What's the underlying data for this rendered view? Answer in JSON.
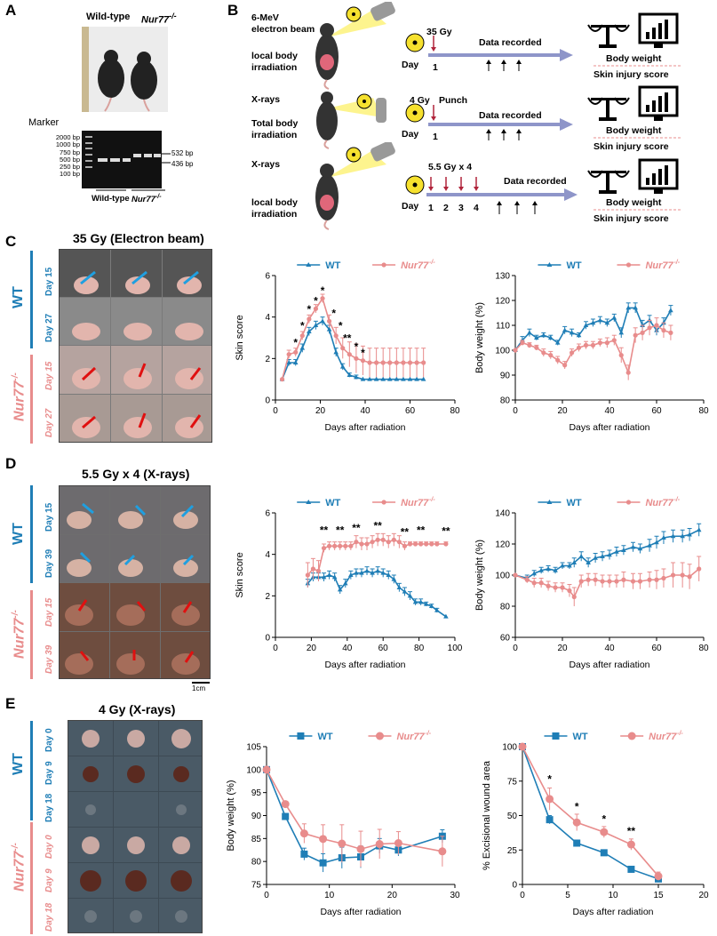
{
  "panels": {
    "A": {
      "letter": "A",
      "wt_label": "Wild-type",
      "ko_label": "Nur77",
      "ko_sup": "-/-",
      "marker_label": "Marker",
      "ladder": [
        "2000 bp",
        "1000 bp",
        "750 bp",
        "500 bp",
        "250 bp",
        "100 bp"
      ],
      "bands": [
        "532 bp",
        "436 bp"
      ],
      "gel_wt": "Wild-type",
      "gel_ko": "Nur77",
      "gel_ko_sup": "-/-"
    },
    "B": {
      "letter": "B",
      "row1": {
        "src_line1": "6-MeV",
        "src_line2": "electron beam",
        "target_line1": "local body",
        "target_line2": "irradiation",
        "dose": "35 Gy",
        "recorded": "Data recorded",
        "day_label": "Day",
        "days": [
          "1"
        ],
        "out1": "Body weight",
        "out2": "Skin injury score"
      },
      "row2": {
        "src_line1": "X-rays",
        "target_line1": "Total body",
        "target_line2": "irradiation",
        "dose": "4 Gy",
        "punch": "Punch",
        "recorded": "Data recorded",
        "day_label": "Day",
        "days": [
          "1"
        ],
        "out1": "Body weight",
        "out2": "Skin injury score"
      },
      "row3": {
        "src_line1": "X-rays",
        "target_line1": "local body",
        "target_line2": "irradiation",
        "dose": "5.5 Gy x 4",
        "recorded": "Data recorded",
        "day_label": "Day",
        "days": [
          "1",
          "2",
          "3",
          "4"
        ],
        "out1": "Body weight",
        "out2": "Skin injury score"
      }
    },
    "C": {
      "letter": "C",
      "title": "35 Gy (Electron beam)",
      "days": [
        "Day 15",
        "Day 27",
        "Day 15",
        "Day 27"
      ],
      "wt": "WT",
      "ko": "Nur77",
      "ko_sup": "-/-"
    },
    "D": {
      "letter": "D",
      "title": "5.5 Gy x 4 (X-rays)",
      "days": [
        "Day 15",
        "Day 39",
        "Day 15",
        "Day 39"
      ],
      "wt": "WT",
      "ko": "Nur77",
      "ko_sup": "-/-",
      "scale": "1cm"
    },
    "E": {
      "letter": "E",
      "title": "4 Gy (X-rays)",
      "days": [
        "Day 0",
        "Day 9",
        "Day 18",
        "Day 0",
        "Day 9",
        "Day 18"
      ],
      "wt": "WT",
      "ko": "Nur77",
      "ko_sup": "-/-"
    }
  },
  "colors": {
    "wt": "#1f7eb6",
    "ko": "#e88c8c"
  },
  "chart_data": [
    {
      "id": "c_skin",
      "type": "line",
      "ylabel": "Skin score",
      "xlabel": "Days after radiation",
      "xlim": [
        0,
        80
      ],
      "ylim": [
        0,
        6
      ],
      "xticks": [
        0,
        20,
        40,
        60,
        80
      ],
      "yticks": [
        0,
        2,
        4,
        6
      ],
      "legend": [
        "WT",
        "Nur77"
      ],
      "legend_sup": "-/-",
      "series": [
        {
          "name": "WT",
          "x": [
            3,
            6,
            9,
            12,
            15,
            18,
            21,
            24,
            27,
            30,
            33,
            36,
            39,
            42,
            45,
            48,
            51,
            54,
            57,
            60,
            63,
            66
          ],
          "y": [
            1,
            1.8,
            1.8,
            2.5,
            3.3,
            3.6,
            3.8,
            3.4,
            2.3,
            1.6,
            1.2,
            1.1,
            1,
            1,
            1,
            1,
            1,
            1,
            1,
            1,
            1,
            1
          ],
          "err": [
            0,
            0.15,
            0.15,
            0.2,
            0.2,
            0.2,
            0.2,
            0.2,
            0.2,
            0.15,
            0.1,
            0.1,
            0,
            0,
            0,
            0,
            0,
            0,
            0,
            0,
            0,
            0
          ]
        },
        {
          "name": "Nur77",
          "x": [
            3,
            6,
            9,
            12,
            15,
            18,
            21,
            24,
            27,
            30,
            33,
            36,
            39,
            42,
            45,
            48,
            51,
            54,
            57,
            60,
            63,
            66
          ],
          "y": [
            1,
            2.2,
            2.3,
            3.1,
            3.9,
            4.4,
            4.9,
            3.8,
            3.1,
            2.5,
            2.2,
            2,
            1.9,
            1.8,
            1.8,
            1.8,
            1.8,
            1.8,
            1.8,
            1.8,
            1.8,
            1.8
          ],
          "err": [
            0,
            0.2,
            0.2,
            0.2,
            0.2,
            0.2,
            0.2,
            0.3,
            0.4,
            0.5,
            0.6,
            0.7,
            0.7,
            0.7,
            0.7,
            0.7,
            0.7,
            0.7,
            0.7,
            0.7,
            0.7,
            0.7
          ]
        }
      ],
      "annotations": [
        {
          "x": 9,
          "y": 2.6,
          "text": "*"
        },
        {
          "x": 12,
          "y": 3.4,
          "text": "*"
        },
        {
          "x": 15,
          "y": 4.2,
          "text": "*"
        },
        {
          "x": 18,
          "y": 4.6,
          "text": "*"
        },
        {
          "x": 21,
          "y": 5.1,
          "text": "*"
        },
        {
          "x": 26,
          "y": 4.0,
          "text": "*"
        },
        {
          "x": 29,
          "y": 3.4,
          "text": "*"
        },
        {
          "x": 32,
          "y": 2.8,
          "text": "**"
        },
        {
          "x": 36,
          "y": 2.4,
          "text": "*"
        },
        {
          "x": 39,
          "y": 2.1,
          "text": "*"
        }
      ]
    },
    {
      "id": "c_bw",
      "type": "line",
      "ylabel": "Body weight (%)",
      "xlabel": "Days after radiation",
      "xlim": [
        0,
        80
      ],
      "ylim": [
        80,
        130
      ],
      "xticks": [
        0,
        20,
        40,
        60,
        80
      ],
      "yticks": [
        80,
        90,
        100,
        110,
        120,
        130
      ],
      "legend": [
        "WT",
        "Nur77"
      ],
      "legend_sup": "-/-",
      "series": [
        {
          "name": "WT",
          "x": [
            0,
            3,
            6,
            9,
            12,
            15,
            18,
            21,
            24,
            27,
            30,
            33,
            36,
            39,
            42,
            45,
            48,
            51,
            54,
            57,
            60,
            63,
            66
          ],
          "y": [
            100,
            104,
            107,
            105,
            106,
            105,
            103,
            108,
            107,
            106,
            110,
            111,
            112,
            111,
            113,
            107,
            117,
            117,
            110,
            112,
            108,
            111,
            116
          ],
          "err": [
            0,
            1.5,
            1.5,
            1,
            1,
            1,
            1,
            1.5,
            1.5,
            1,
            1.5,
            1.5,
            1.5,
            1.5,
            1.5,
            2,
            2,
            2,
            2,
            2,
            2,
            2,
            2
          ]
        },
        {
          "name": "Nur77",
          "x": [
            0,
            3,
            6,
            9,
            12,
            15,
            18,
            21,
            24,
            27,
            30,
            33,
            36,
            39,
            42,
            45,
            48,
            51,
            54,
            57,
            60,
            63,
            66
          ],
          "y": [
            100,
            103,
            102,
            101,
            99,
            98,
            96,
            94,
            99,
            101,
            102,
            102,
            103,
            103,
            104,
            98,
            91,
            106,
            107,
            109,
            110,
            108,
            107
          ],
          "err": [
            0,
            1,
            1,
            1,
            1.5,
            1.5,
            1.5,
            1.5,
            1.5,
            1.5,
            1.5,
            1.5,
            1.5,
            2,
            2,
            3,
            3,
            3,
            3,
            3,
            3,
            3,
            3
          ]
        }
      ]
    },
    {
      "id": "d_skin",
      "type": "line",
      "ylabel": "Skin score",
      "xlabel": "Days after radiation",
      "xlim": [
        0,
        100
      ],
      "ylim": [
        0,
        6
      ],
      "xticks": [
        0,
        20,
        40,
        60,
        80,
        100
      ],
      "yticks": [
        0,
        2,
        4,
        6
      ],
      "legend": [
        "WT",
        "Nur77"
      ],
      "legend_sup": "-/-",
      "series": [
        {
          "name": "WT",
          "x": [
            18,
            21,
            24,
            27,
            30,
            33,
            36,
            39,
            42,
            45,
            48,
            51,
            54,
            57,
            60,
            63,
            66,
            69,
            72,
            75,
            78,
            81,
            84,
            87,
            90,
            95
          ],
          "y": [
            2.6,
            2.9,
            2.9,
            2.9,
            3.0,
            2.9,
            2.3,
            2.6,
            3.0,
            3.1,
            3.1,
            3.2,
            3.1,
            3.2,
            3.1,
            3.0,
            2.8,
            2.4,
            2.2,
            2.0,
            1.7,
            1.7,
            1.6,
            1.5,
            1.3,
            1.0
          ],
          "err": [
            0.2,
            0.2,
            0.2,
            0.2,
            0.2,
            0.2,
            0.2,
            0.2,
            0.2,
            0.2,
            0.2,
            0.2,
            0.2,
            0.2,
            0.2,
            0.2,
            0.2,
            0.2,
            0.2,
            0.2,
            0.15,
            0.15,
            0.1,
            0.1,
            0.1,
            0
          ]
        },
        {
          "name": "Nur77",
          "x": [
            18,
            21,
            24,
            27,
            30,
            33,
            36,
            39,
            42,
            45,
            48,
            51,
            54,
            57,
            60,
            63,
            66,
            69,
            72,
            75,
            78,
            81,
            84,
            87,
            90,
            95
          ],
          "y": [
            3.0,
            3.3,
            3.2,
            4.3,
            4.4,
            4.4,
            4.4,
            4.4,
            4.4,
            4.6,
            4.5,
            4.5,
            4.6,
            4.7,
            4.7,
            4.6,
            4.7,
            4.6,
            4.4,
            4.5,
            4.5,
            4.5,
            4.5,
            4.5,
            4.5,
            4.5
          ],
          "err": [
            0.6,
            0.5,
            0.5,
            0.2,
            0.2,
            0.2,
            0.2,
            0.2,
            0.2,
            0.3,
            0.3,
            0.3,
            0.3,
            0.3,
            0.3,
            0.3,
            0.3,
            0.3,
            0.2,
            0.1,
            0.1,
            0.1,
            0.1,
            0.1,
            0.1,
            0.1
          ]
        }
      ],
      "annotations": [
        {
          "x": 27,
          "y": 5.0,
          "text": "**"
        },
        {
          "x": 36,
          "y": 5.0,
          "text": "**"
        },
        {
          "x": 45,
          "y": 5.1,
          "text": "**"
        },
        {
          "x": 57,
          "y": 5.2,
          "text": "**"
        },
        {
          "x": 72,
          "y": 4.9,
          "text": "**"
        },
        {
          "x": 81,
          "y": 5.0,
          "text": "**"
        },
        {
          "x": 95,
          "y": 4.95,
          "text": "**"
        }
      ]
    },
    {
      "id": "d_bw",
      "type": "line",
      "ylabel": "Body weight (%)",
      "xlabel": "Days after radiation",
      "xlim": [
        0,
        80
      ],
      "ylim": [
        60,
        140
      ],
      "xticks": [
        0,
        20,
        40,
        60,
        80
      ],
      "yticks": [
        60,
        80,
        100,
        120,
        140
      ],
      "legend": [
        "WT",
        "Nur77"
      ],
      "legend_sup": "-/-",
      "series": [
        {
          "name": "WT",
          "x": [
            0,
            5,
            8,
            11,
            14,
            17,
            20,
            23,
            25,
            28,
            31,
            34,
            37,
            40,
            43,
            46,
            50,
            53,
            57,
            60,
            63,
            67,
            71,
            74,
            78
          ],
          "y": [
            100,
            98,
            101,
            103,
            104,
            103,
            106,
            106,
            108,
            112,
            108,
            111,
            112,
            113,
            115,
            116,
            118,
            117,
            119,
            121,
            124,
            125,
            125,
            126,
            129
          ],
          "err": [
            0,
            2,
            2,
            2,
            2,
            2,
            2,
            2,
            3,
            3,
            3,
            3,
            3,
            3,
            3,
            3,
            3,
            3,
            4,
            4,
            4,
            4,
            4,
            4,
            4
          ]
        },
        {
          "name": "Nur77",
          "x": [
            0,
            5,
            8,
            11,
            14,
            17,
            20,
            23,
            25,
            28,
            31,
            34,
            37,
            40,
            43,
            46,
            50,
            53,
            57,
            60,
            63,
            67,
            71,
            74,
            78
          ],
          "y": [
            100,
            97,
            95,
            95,
            93,
            92,
            92,
            90,
            86,
            96,
            97,
            97,
            96,
            96,
            96,
            97,
            96,
            96,
            97,
            97,
            98,
            100,
            100,
            99,
            104
          ],
          "err": [
            0,
            2,
            3,
            3,
            3,
            3,
            3,
            4,
            6,
            4,
            4,
            4,
            4,
            4,
            4,
            5,
            5,
            5,
            5,
            6,
            6,
            8,
            8,
            8,
            8
          ]
        }
      ]
    },
    {
      "id": "e_bw",
      "type": "line",
      "ylabel": "Body weight (%)",
      "xlabel": "Days after radiation",
      "xlim": [
        0,
        30
      ],
      "ylim": [
        75,
        105
      ],
      "xticks": [
        0,
        10,
        20,
        30
      ],
      "yticks": [
        75,
        80,
        85,
        90,
        95,
        100,
        105
      ],
      "legend": [
        "WT",
        "Nur77"
      ],
      "legend_sup": "-/-",
      "series": [
        {
          "name": "WT",
          "x": [
            0,
            3,
            6,
            9,
            12,
            15,
            18,
            21,
            28
          ],
          "y": [
            100,
            89.8,
            81.6,
            79.7,
            80.8,
            81.0,
            83.4,
            82.5,
            85.5
          ],
          "err": [
            0,
            0.6,
            1.3,
            2.0,
            2.3,
            2.4,
            1.6,
            1.3,
            1.4
          ]
        },
        {
          "name": "Nur77",
          "x": [
            0,
            3,
            6,
            9,
            12,
            15,
            18,
            21,
            28
          ],
          "y": [
            100,
            92.5,
            86.1,
            84.9,
            83.9,
            82.7,
            83.8,
            84.0,
            82.2
          ],
          "err": [
            0,
            0.6,
            2.1,
            3.1,
            4.1,
            3.9,
            3.2,
            2.5,
            3.3
          ]
        }
      ]
    },
    {
      "id": "e_wound",
      "type": "line",
      "ylabel": "% Excisional wound area",
      "xlabel": "Days after radiation",
      "xlim": [
        0,
        20
      ],
      "ylim": [
        0,
        100
      ],
      "xticks": [
        0,
        5,
        10,
        15,
        20
      ],
      "yticks": [
        0,
        25,
        50,
        75,
        100
      ],
      "legend": [
        "WT",
        "Nur77"
      ],
      "legend_sup": "-/-",
      "series": [
        {
          "name": "WT",
          "x": [
            0,
            3,
            6,
            9,
            12,
            15
          ],
          "y": [
            100,
            47,
            30,
            23,
            11,
            4
          ],
          "err": [
            0,
            3,
            2,
            2,
            2,
            1
          ]
        },
        {
          "name": "Nur77",
          "x": [
            0,
            3,
            6,
            9,
            12,
            15
          ],
          "y": [
            100,
            62,
            45,
            38,
            29,
            6
          ],
          "err": [
            0,
            8,
            6,
            4,
            4,
            3
          ]
        }
      ],
      "annotations": [
        {
          "x": 3,
          "y": 74,
          "text": "*"
        },
        {
          "x": 6,
          "y": 54,
          "text": "*"
        },
        {
          "x": 9,
          "y": 45,
          "text": "*"
        },
        {
          "x": 12,
          "y": 36,
          "text": "**"
        }
      ]
    }
  ]
}
